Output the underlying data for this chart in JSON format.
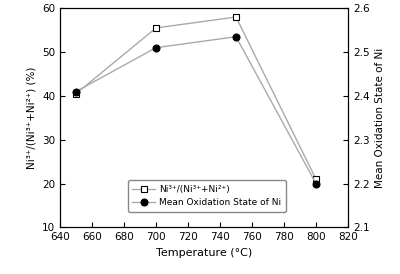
{
  "temperature": [
    650,
    700,
    750,
    800
  ],
  "ni3_ratio": [
    40.5,
    55.5,
    58.0,
    21.0
  ],
  "mean_ox_state": [
    2.41,
    2.51,
    2.535,
    2.2
  ],
  "left_ylim": [
    10,
    60
  ],
  "right_ylim": [
    2.1,
    2.6
  ],
  "left_yticks": [
    10,
    20,
    30,
    40,
    50,
    60
  ],
  "right_yticks": [
    2.1,
    2.2,
    2.3,
    2.4,
    2.5,
    2.6
  ],
  "xlim": [
    640,
    820
  ],
  "xticks": [
    640,
    660,
    680,
    700,
    720,
    740,
    760,
    780,
    800,
    820
  ],
  "xlabel": "Temperature (°C)",
  "ylabel_left": "Ni³⁺/(Ni³⁺+Ni²⁺) (%)",
  "ylabel_right": "Mean Oxidation State of Ni",
  "legend_label1": "Ni³⁺/(Ni³⁺+Ni²⁺)",
  "legend_label2": "Mean Oxidation State of Ni",
  "line_color": "#aaaaaa",
  "background_color": "#ffffff"
}
